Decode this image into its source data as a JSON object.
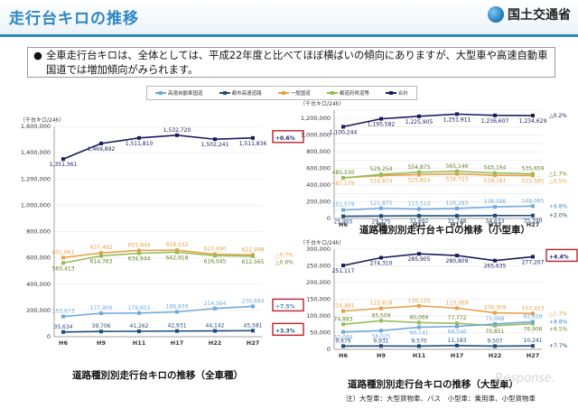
{
  "header": {
    "title": "走行台キロの推移",
    "agency": "国土交通省"
  },
  "summary": {
    "bullet": "●",
    "text": "全車走行台キロは、全体としては、平成22年度と比べてほぼ横ばいの傾向にありますが、大型車や高速自動車国道では増加傾向がみられます。"
  },
  "legend": [
    {
      "name": "高速自動車国道",
      "color": "#6fa8dc"
    },
    {
      "name": "都市高速道路",
      "color": "#1f4e79"
    },
    {
      "name": "一般国道",
      "color": "#e6a24a"
    },
    {
      "name": "都道府県道等",
      "color": "#9bbb59"
    },
    {
      "name": "合計",
      "color": "#1b1b5e"
    }
  ],
  "captions": {
    "all": "道路種別別走行台キロの推移（全車種）",
    "small": "道路種別別走行台キロの推移（小型車）",
    "large": "道路種別別走行台キロの推移（大型車）"
  },
  "footnote": "注）大型車：大型貨物車、バス　小型車：乗用車、小型貨物車",
  "watermark": "Response.",
  "chart_data": [
    {
      "id": "all",
      "type": "line",
      "unit": "（千台キロ/24h）",
      "x": [
        "H6",
        "H9",
        "H11",
        "H17",
        "H22",
        "H27"
      ],
      "ylim": [
        0,
        1600000
      ],
      "yticks": [
        0,
        200000,
        400000,
        600000,
        800000,
        1000000,
        1200000,
        1400000,
        1600000
      ],
      "ytick_labels": [
        "0",
        "200,000",
        "400,000",
        "600,000",
        "800,000",
        "1,000,000",
        "1,200,000",
        "1,400,000",
        "1,600,000"
      ],
      "series": [
        {
          "name": "合計",
          "color": "#1b1b5e",
          "values": [
            1351361,
            1469892,
            1511810,
            1532720,
            1502241,
            1511836
          ],
          "labels": [
            "1,351,361",
            "1,469,892",
            "1,511,810",
            "1,532,720",
            "1,502,241",
            "1,511,836"
          ],
          "label_pos": [
            "below",
            "below",
            "below",
            "above",
            "below",
            "below"
          ]
        },
        {
          "name": "一般国道",
          "color": "#e6a24a",
          "values": [
            601661,
            637492,
            655949,
            658032,
            627490,
            622998
          ],
          "labels": [
            "601,661",
            "637,492",
            "655,949",
            "658,032",
            "627,490",
            "622,998"
          ],
          "label_pos": [
            "above",
            "above",
            "above",
            "above",
            "above",
            "above"
          ]
        },
        {
          "name": "都道府県道等",
          "color": "#9bbb59",
          "values": [
            560413,
            614763,
            634944,
            642918,
            616045,
            612565
          ],
          "labels": [
            "560,413",
            "614,763",
            "634,944",
            "642,918",
            "616,045",
            "612,565"
          ],
          "label_pos": [
            "below",
            "below",
            "below",
            "below",
            "below",
            "below"
          ]
        },
        {
          "name": "高速自動車国道",
          "color": "#6fa8dc",
          "values": [
            153673,
            177900,
            179653,
            188839,
            214564,
            230694
          ],
          "labels": [
            "153,673",
            "177,900",
            "179,653",
            "188,839",
            "214,564",
            "230,694"
          ],
          "label_pos": [
            "above",
            "above",
            "above",
            "above",
            "above",
            "above"
          ]
        },
        {
          "name": "都市高速道路",
          "color": "#1f4e79",
          "values": [
            35634,
            39706,
            41262,
            42931,
            44142,
            45581
          ],
          "labels": [
            "35,634",
            "39,706",
            "41,262",
            "42,931",
            "44,142",
            "45,581"
          ],
          "label_pos": [
            "above",
            "above",
            "above",
            "above",
            "above",
            "above"
          ]
        }
      ],
      "changes": [
        {
          "series": "合計",
          "text": "+0.6%",
          "boxed": true,
          "color": "#1b1b5e"
        },
        {
          "series": "一般国道",
          "text": "△0.7%",
          "boxed": false,
          "color": "#e6a24a"
        },
        {
          "series": "都道府県道等",
          "text": "△0.6%",
          "boxed": false,
          "color": "#6a8a2a"
        },
        {
          "series": "高速自動車国道",
          "text": "+7.5%",
          "boxed": true,
          "color": "#4a88c4"
        },
        {
          "series": "都市高速道路",
          "text": "+3.3%",
          "boxed": true,
          "color": "#1f4e79"
        }
      ]
    },
    {
      "id": "small",
      "type": "line",
      "unit": "（千台キロ/24h）",
      "x": [
        "H6",
        "H9",
        "H11",
        "H17",
        "H22",
        "H27"
      ],
      "ylim": [
        0,
        1300000
      ],
      "yticks": [
        0,
        100000,
        200000,
        300000,
        400000,
        500000,
        600000,
        700000,
        800000,
        900000,
        1000000,
        1100000,
        1200000,
        1300000
      ],
      "ytick_labels": [
        "0",
        "100,000",
        "200,000",
        "300,000",
        "400,000",
        "500,000",
        "600,000",
        "700,000",
        "800,000",
        "900,000",
        "1,000,000",
        "1,100,000",
        "1,200,000",
        "1,300,000"
      ],
      "series": [
        {
          "name": "合計",
          "color": "#1b1b5e",
          "values": [
            1100244,
            1195582,
            1225905,
            1251911,
            1236607,
            1234629
          ],
          "labels": [
            "1,100,244",
            "1,195,582",
            "1,225,905",
            "1,251,911",
            "1,236,607",
            "1,234,629"
          ],
          "label_pos": [
            "below",
            "below",
            "below",
            "below",
            "below",
            "below"
          ]
        },
        {
          "name": "一般国道",
          "color": "#e6a24a",
          "values": [
            487179,
            514874,
            525824,
            534723,
            518181,
            515585
          ],
          "labels": [
            "487,179",
            "514,874",
            "525,824",
            "534,723",
            "518,181",
            "515,585"
          ],
          "label_pos": [
            "below",
            "below",
            "below",
            "below",
            "below",
            "below"
          ]
        },
        {
          "name": "都道府県道等",
          "color": "#9bbb59",
          "values": [
            485530,
            529254,
            554875,
            565146,
            545194,
            535659
          ],
          "labels": [
            "485,530",
            "529,254",
            "554,875",
            "565,146",
            "545,194",
            "535,659"
          ],
          "label_pos": [
            "above",
            "above",
            "above",
            "above",
            "above",
            "above"
          ]
        },
        {
          "name": "高速自動車国道",
          "color": "#6fa8dc",
          "values": [
            101579,
            121875,
            113514,
            120293,
            138596,
            148065
          ],
          "labels": [
            "101,579",
            "121,875",
            "113,514",
            "120,293",
            "138,596",
            "148,065"
          ],
          "label_pos": [
            "above",
            "above",
            "above",
            "above",
            "above",
            "above"
          ]
        },
        {
          "name": "都市高速道路",
          "color": "#1f4e79",
          "values": [
            25955,
            29775,
            31692,
            31748,
            34633,
            35340
          ],
          "labels": [
            "25,955",
            "29,775",
            "31,692",
            "31,748",
            "34,633",
            "35,340"
          ],
          "label_pos": [
            "below",
            "below",
            "below",
            "below",
            "below",
            "below"
          ]
        }
      ],
      "changes": [
        {
          "series": "合計",
          "text": "△0.2%",
          "boxed": false,
          "color": "#1b1b5e"
        },
        {
          "series": "都道府県道等",
          "text": "△1.7%",
          "boxed": false,
          "color": "#6a8a2a"
        },
        {
          "series": "一般国道",
          "text": "△0.5%",
          "boxed": false,
          "color": "#e6a24a"
        },
        {
          "series": "高速自動車国道",
          "text": "+6.8%",
          "boxed": false,
          "color": "#4a88c4"
        },
        {
          "series": "都市高速道路",
          "text": "+2.0%",
          "boxed": false,
          "color": "#1f4e79"
        }
      ]
    },
    {
      "id": "large",
      "type": "line",
      "unit": "（千台キロ/24h）",
      "x": [
        "H6",
        "H9",
        "H11",
        "H17",
        "H22",
        "H27"
      ],
      "ylim": [
        0,
        300000
      ],
      "yticks": [
        0,
        50000,
        100000,
        150000,
        200000,
        250000,
        300000
      ],
      "ytick_labels": [
        "0",
        "50,000",
        "100,000",
        "150,000",
        "200,000",
        "250,000",
        "300,000"
      ],
      "series": [
        {
          "name": "合計",
          "color": "#1b1b5e",
          "values": [
            251117,
            274310,
            285905,
            280809,
            265635,
            277207
          ],
          "labels": [
            "251,117",
            "274,310",
            "285,905",
            "280,809",
            "265,635",
            "277,207"
          ],
          "label_pos": [
            "below",
            "below",
            "below",
            "below",
            "below",
            "below"
          ]
        },
        {
          "name": "一般国道",
          "color": "#e6a24a",
          "values": [
            114481,
            122618,
            130125,
            123309,
            109309,
            107413
          ],
          "labels": [
            "114,481",
            "122,618",
            "130,125",
            "123,309",
            "109,309",
            "107,413"
          ],
          "label_pos": [
            "above",
            "above",
            "above",
            "above",
            "above",
            "above"
          ]
        },
        {
          "name": "都道府県道等",
          "color": "#9bbb59",
          "values": [
            74883,
            85509,
            80069,
            77772,
            70851,
            76906
          ],
          "labels": [
            "74,883",
            "85,509",
            "80,069",
            "77,772",
            "70,851",
            "76,906"
          ],
          "label_pos": [
            "above",
            "above",
            "above",
            "above",
            "below",
            "below"
          ]
        },
        {
          "name": "高速自動車国道",
          "color": "#6fa8dc",
          "values": [
            52094,
            56025,
            66141,
            68546,
            75968,
            82629
          ],
          "labels": [
            "52,094",
            "56,025",
            "66,141",
            "68,546",
            "75,968",
            "82,629"
          ],
          "label_pos": [
            "below",
            "below",
            "below",
            "below",
            "above",
            "above"
          ]
        },
        {
          "name": "都市高速道路",
          "color": "#1f4e79",
          "values": [
            9679,
            9931,
            9570,
            11183,
            9507,
            10241
          ],
          "labels": [
            "9,679",
            "9,931",
            "9,570",
            "11,183",
            "9,507",
            "10,241"
          ],
          "label_pos": [
            "above",
            "above",
            "above",
            "above",
            "above",
            "above"
          ]
        }
      ],
      "changes": [
        {
          "series": "合計",
          "text": "+4.4%",
          "boxed": true,
          "color": "#1b1b5e"
        },
        {
          "series": "一般国道",
          "text": "△1.7%",
          "boxed": false,
          "color": "#e6a24a"
        },
        {
          "series": "高速自動車国道",
          "text": "+8.8%",
          "boxed": false,
          "color": "#4a88c4"
        },
        {
          "series": "都道府県道等",
          "text": "+8.5%",
          "boxed": false,
          "color": "#6a8a2a"
        },
        {
          "series": "都市高速道路",
          "text": "+7.7%",
          "boxed": false,
          "color": "#1f4e79"
        }
      ]
    }
  ]
}
